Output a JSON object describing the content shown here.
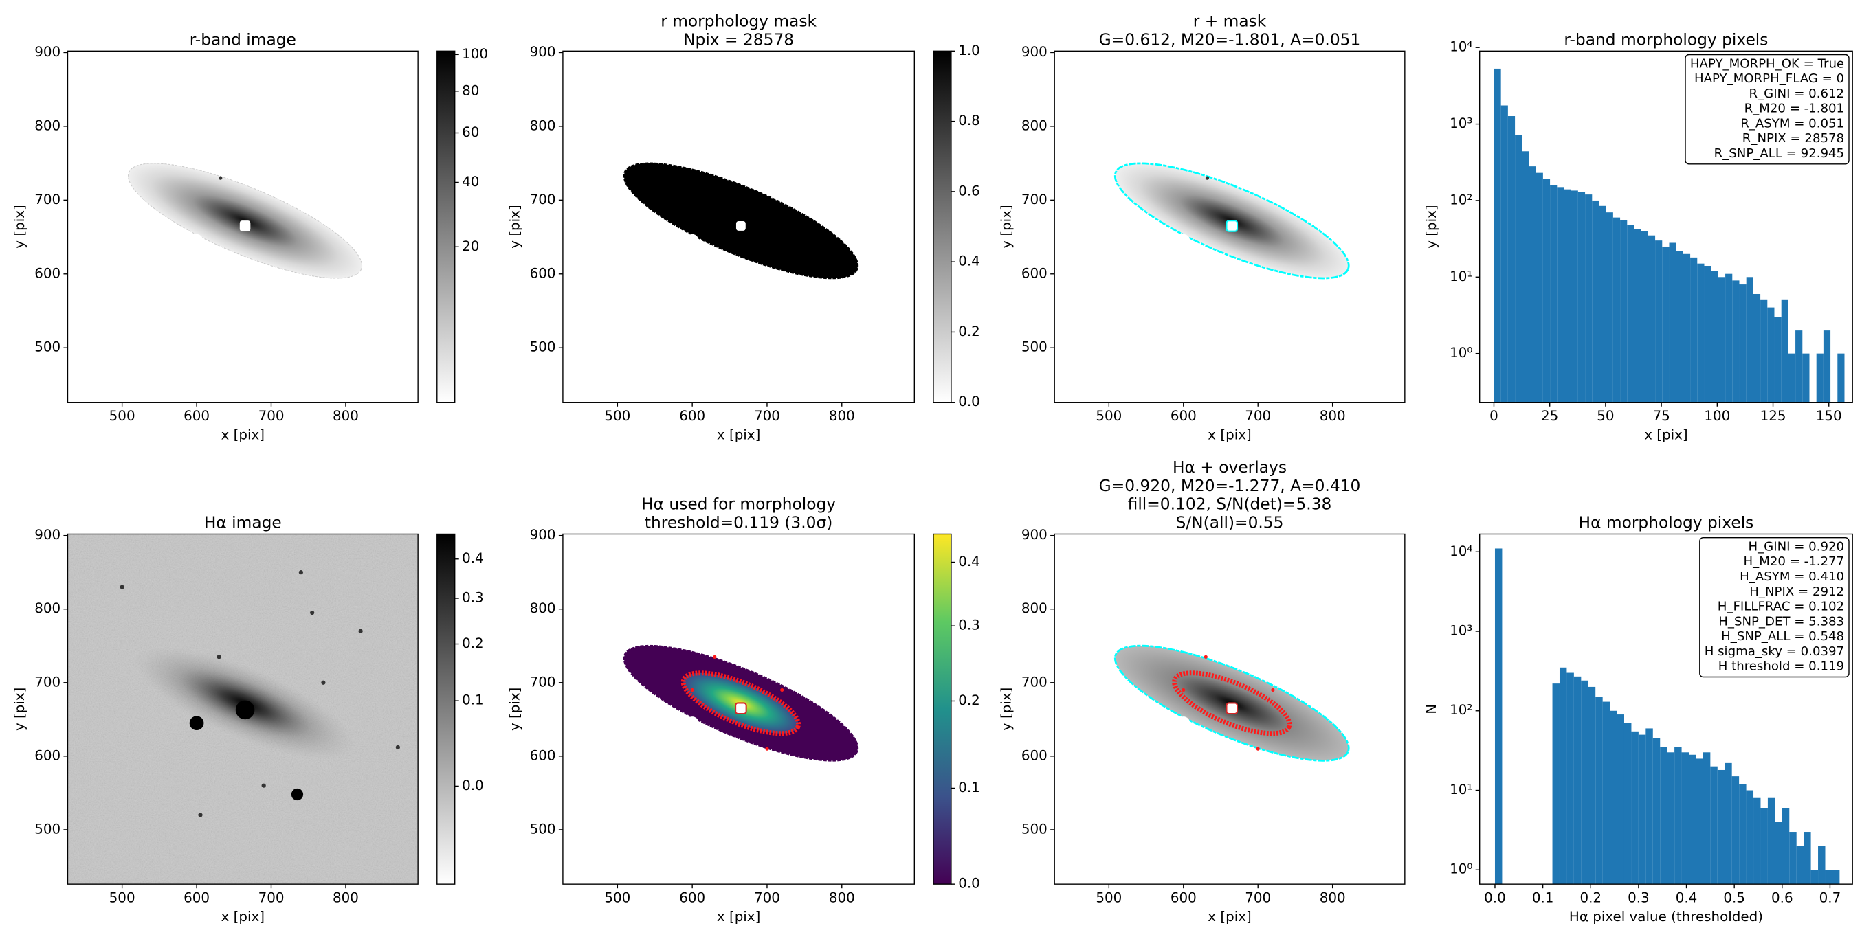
{
  "chart_data": [
    {
      "type": "image",
      "title": [
        "r-band image"
      ],
      "xlabel": "x [pix]",
      "ylabel": "y [pix]",
      "xlim": [
        427,
        897
      ],
      "ylim": [
        426,
        902
      ],
      "xticks": [
        500,
        600,
        700,
        800
      ],
      "yticks": [
        500,
        600,
        700,
        800,
        900
      ],
      "colorbar": {
        "cmap": "gray_r",
        "scale": "sqrt",
        "ylim": [
          0,
          102
        ],
        "yticks": [
          20,
          40,
          60,
          80,
          100
        ]
      }
    },
    {
      "type": "image",
      "title": [
        "r morphology mask",
        "Npix = 28578"
      ],
      "xlabel": "x [pix]",
      "ylabel": "y [pix]",
      "xlim": [
        427,
        897
      ],
      "ylim": [
        426,
        902
      ],
      "xticks": [
        500,
        600,
        700,
        800
      ],
      "yticks": [
        500,
        600,
        700,
        800,
        900
      ],
      "colorbar": {
        "cmap": "gray_r",
        "scale": "linear",
        "ylim": [
          0,
          1
        ],
        "yticks": [
          {
            "value": 0,
            "label": "0.0"
          },
          0.2,
          0.4,
          0.6,
          0.8,
          {
            "value": 1,
            "label": "1.0"
          }
        ]
      }
    },
    {
      "type": "image",
      "title": [
        "r + mask",
        "G=0.612, M20=-1.801, A=0.051"
      ],
      "xlabel": "x [pix]",
      "ylabel": "y [pix]",
      "xlim": [
        427,
        897
      ],
      "ylim": [
        426,
        902
      ],
      "xticks": [
        500,
        600,
        700,
        800
      ],
      "yticks": [
        500,
        600,
        700,
        800,
        900
      ]
    },
    {
      "type": "histogram",
      "title": [
        "r-band morphology pixels"
      ],
      "xlabel": "x [pix]",
      "ylabel": "y [pix]",
      "color": "#1f77b4",
      "log_y": true,
      "xlim": [
        -6.4,
        160.6
      ],
      "ylim": [
        0.23,
        9000
      ],
      "xticks": [
        0,
        25,
        50,
        75,
        100,
        125,
        150
      ],
      "yticks": [
        {
          "value": 1,
          "label": "10⁰"
        },
        {
          "value": 10,
          "label": "10¹"
        },
        {
          "value": 100,
          "label": "10²"
        },
        {
          "value": 1000,
          "label": "10³"
        },
        {
          "value": 10000,
          "label": "10⁴"
        }
      ],
      "bins": [
        0,
        3.14,
        6.28,
        9.42,
        12.56,
        15.7,
        18.84,
        21.98,
        25.12,
        28.26,
        31.4,
        34.54,
        37.68,
        40.82,
        43.96,
        47.1,
        50.24,
        53.38,
        56.52,
        59.66,
        62.8,
        65.94,
        69.08,
        72.22,
        75.36,
        78.5,
        81.64,
        84.78,
        87.92,
        91.06,
        94.2,
        97.34,
        100.48,
        103.62,
        106.76,
        109.9,
        113.04,
        116.18,
        119.32,
        122.46,
        125.6,
        128.74,
        131.88,
        135.02,
        138.16,
        141.3,
        144.44,
        147.58,
        150.72,
        153.86,
        157
      ],
      "values": [
        5300,
        1750,
        1270,
        720,
        440,
        280,
        230,
        190,
        160,
        150,
        140,
        135,
        130,
        120,
        100,
        85,
        70,
        60,
        55,
        48,
        42,
        40,
        35,
        30,
        25,
        28,
        22,
        20,
        18,
        15,
        14,
        12,
        10,
        11,
        9,
        8,
        10,
        6,
        5,
        4,
        3,
        5,
        1,
        2,
        1,
        0,
        1,
        2,
        0,
        1
      ],
      "annotation": [
        "HAPY_MORPH_OK = True",
        "HAPY_MORPH_FLAG = 0",
        "R_GINI = 0.612",
        "R_M20 = -1.801",
        "R_ASYM = 0.051",
        "R_NPIX = 28578",
        "R_SNP_ALL = 92.945"
      ]
    },
    {
      "type": "image",
      "title": [
        "Hα image"
      ],
      "xlabel": "x [pix]",
      "ylabel": "y [pix]",
      "xlim": [
        427,
        897
      ],
      "ylim": [
        426,
        902
      ],
      "xticks": [
        500,
        600,
        700,
        800
      ],
      "yticks": [
        500,
        600,
        700,
        800,
        900
      ],
      "colorbar": {
        "cmap": "gray_r",
        "scale": "sqrt",
        "ylim": [
          -0.04,
          0.47
        ],
        "yticks": [
          {
            "value": 0,
            "label": "0.0"
          },
          0.1,
          0.2,
          0.3,
          0.4
        ]
      }
    },
    {
      "type": "image",
      "title": [
        "Hα used for morphology",
        "threshold=0.119 (3.0σ)"
      ],
      "xlabel": "x [pix]",
      "ylabel": "y [pix]",
      "xlim": [
        427,
        897
      ],
      "ylim": [
        426,
        902
      ],
      "xticks": [
        500,
        600,
        700,
        800
      ],
      "yticks": [
        500,
        600,
        700,
        800,
        900
      ],
      "colorbar": {
        "cmap": "viridis",
        "scale": "asinh",
        "asinh_a": 0.3,
        "ylim": [
          0,
          0.45
        ],
        "yticks": [
          {
            "value": 0,
            "label": "0.0"
          },
          0.1,
          0.2,
          0.3,
          0.4
        ]
      }
    },
    {
      "type": "image",
      "title": [
        "Hα + overlays",
        "G=0.920, M20=-1.277, A=0.410",
        "fill=0.102, S/N(det)=5.38",
        "S/N(all)=0.55"
      ],
      "xlabel": "x [pix]",
      "ylabel": "y [pix]",
      "xlim": [
        427,
        897
      ],
      "ylim": [
        426,
        902
      ],
      "xticks": [
        500,
        600,
        700,
        800
      ],
      "yticks": [
        500,
        600,
        700,
        800,
        900
      ]
    },
    {
      "type": "histogram",
      "title": [
        "Hα morphology pixels"
      ],
      "xlabel": "Hα pixel value (thresholded)",
      "ylabel": "N",
      "color": "#1f77b4",
      "log_y": true,
      "xlim": [
        -0.032,
        0.747
      ],
      "ylim": [
        0.66,
        16700
      ],
      "xticks": [
        {
          "value": 0,
          "label": "0.0"
        },
        0.1,
        0.2,
        0.3,
        0.4,
        0.5,
        0.6,
        0.7
      ],
      "yticks": [
        {
          "value": 1,
          "label": "10⁰"
        },
        {
          "value": 10,
          "label": "10¹"
        },
        {
          "value": 100,
          "label": "10²"
        },
        {
          "value": 1000,
          "label": "10³"
        },
        {
          "value": 10000,
          "label": "10⁴"
        }
      ],
      "bins": [
        0,
        0.015,
        0.03,
        0.045,
        0.06,
        0.075,
        0.09,
        0.105,
        0.12,
        0.135,
        0.15,
        0.165,
        0.18,
        0.195,
        0.21,
        0.225,
        0.24,
        0.255,
        0.27,
        0.285,
        0.3,
        0.315,
        0.33,
        0.345,
        0.36,
        0.375,
        0.39,
        0.405,
        0.42,
        0.435,
        0.45,
        0.465,
        0.48,
        0.495,
        0.51,
        0.525,
        0.54,
        0.555,
        0.57,
        0.585,
        0.6,
        0.615,
        0.63,
        0.645,
        0.66,
        0.675,
        0.69,
        0.705,
        0.72
      ],
      "values": [
        11000,
        0,
        0,
        0,
        0,
        0,
        0,
        0,
        220,
        350,
        300,
        270,
        240,
        200,
        150,
        130,
        100,
        90,
        70,
        55,
        50,
        60,
        45,
        35,
        30,
        35,
        30,
        28,
        25,
        30,
        20,
        18,
        22,
        15,
        12,
        10,
        8,
        6,
        8,
        4,
        6,
        3,
        2,
        3,
        1,
        2,
        1,
        1
      ],
      "annotation": [
        "H_GINI = 0.920",
        "H_M20 = -1.277",
        "H_ASYM = 0.410",
        "H_NPIX = 2912",
        "H_FILLFRAC = 0.102",
        "H_SNP_DET = 5.383",
        "H_SNP_ALL = 0.548",
        "H sigma_sky = 0.0397",
        "H threshold = 0.119"
      ]
    }
  ]
}
